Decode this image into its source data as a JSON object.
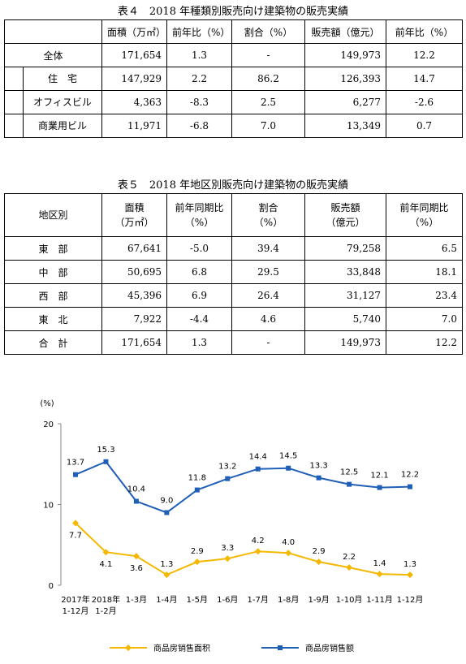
{
  "table4": {
    "title": "表４　2018 年種類別販売向け建築物の販売実績",
    "header": [
      "面積（万㎡）",
      "前年比（%）",
      "割合（%）",
      "販売額（億元）",
      "前年比（%）"
    ],
    "rows": [
      [
        "全体",
        "171,654",
        "1.3",
        "-",
        "149,973",
        "12.2"
      ],
      [
        "住　宅",
        "147,929",
        "2.2",
        "86.2",
        "126,393",
        "14.7"
      ],
      [
        "オフィスビル",
        "4,363",
        "-8.3",
        "2.5",
        "6,277",
        "-2.6"
      ],
      [
        "商業用ビル",
        "11,971",
        "-6.8",
        "7.0",
        "13,349",
        "0.7"
      ]
    ]
  },
  "table5": {
    "title": "表５　2018 年地区別販売向け建築物の販売実績",
    "header": [
      [
        "地区別"
      ],
      [
        "面積",
        "（万㎡）"
      ],
      [
        "前年同期比",
        "（%）"
      ],
      [
        "割合",
        "（%）"
      ],
      [
        "販売額",
        "（億元）"
      ],
      [
        "前年同期比",
        "（%）"
      ]
    ],
    "rows": [
      [
        "東　部",
        "67,641",
        "-5.0",
        "39.4",
        "79,258",
        "6.5"
      ],
      [
        "中　部",
        "50,695",
        "6.8",
        "29.5",
        "33,848",
        "18.1"
      ],
      [
        "西　部",
        "45,396",
        "6.9",
        "26.4",
        "31,127",
        "23.4"
      ],
      [
        "東　北",
        "7,922",
        "-4.4",
        "4.6",
        "5,740",
        "7.0"
      ],
      [
        "合　計",
        "171,654",
        "1.3",
        "-",
        "149,973",
        "12.2"
      ]
    ]
  },
  "chart_data": {
    "type": "line",
    "y_label": "(%)",
    "categories": [
      "2017年\n1-12月",
      "2018年\n1-2月",
      "1-3月",
      "1-4月",
      "1-5月",
      "1-6月",
      "1-7月",
      "1-8月",
      "1-9月",
      "1-10月",
      "1-11月",
      "1-12月"
    ],
    "ylim": [
      0,
      20
    ],
    "yticks": [
      0,
      10,
      20
    ],
    "series": [
      {
        "name": "商品房销售面积",
        "color": "#f5b800",
        "values": [
          7.7,
          4.1,
          3.6,
          1.3,
          2.9,
          3.3,
          4.2,
          4.0,
          2.9,
          2.2,
          1.4,
          1.3
        ],
        "value_labels": [
          "7.7",
          "4.1",
          "3.6",
          "1.3",
          "2.9",
          "3.3",
          "4.2",
          "4.0",
          "2.9",
          "2.2",
          "1.4",
          "1.3"
        ]
      },
      {
        "name": "商品房销售额",
        "color": "#1f5fb8",
        "values": [
          13.7,
          15.3,
          10.4,
          9.0,
          11.8,
          13.2,
          14.4,
          14.5,
          13.3,
          12.5,
          12.1,
          12.2
        ],
        "value_labels": [
          "13.7",
          "15.3",
          "10.4",
          "9.0",
          "11.8",
          "13.2",
          "14.4",
          "14.5",
          "13.3",
          "12.5",
          "12.1",
          "12.2"
        ]
      }
    ]
  }
}
